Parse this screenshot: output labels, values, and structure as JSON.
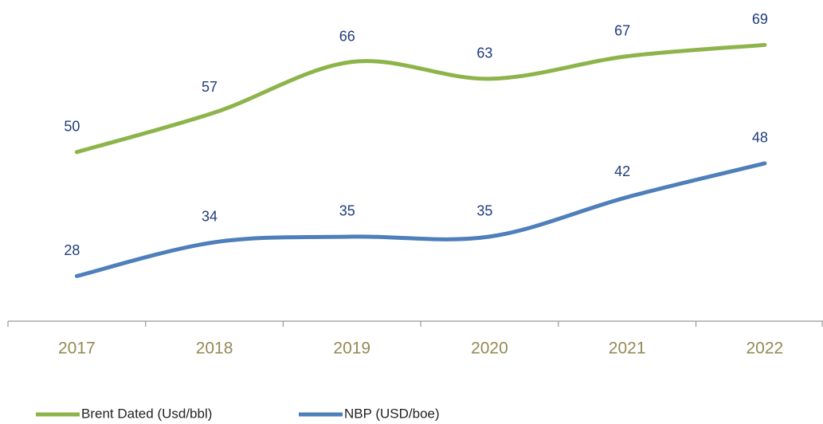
{
  "chart_data": {
    "type": "line",
    "categories": [
      "2017",
      "2018",
      "2019",
      "2020",
      "2021",
      "2022"
    ],
    "series": [
      {
        "name": "Brent Dated (Usd/bbl)",
        "color": "#8db44a",
        "values": [
          50,
          57,
          66,
          63,
          67,
          69
        ]
      },
      {
        "name": "NBP (USD/boe)",
        "color": "#4e7fba",
        "values": [
          28,
          34,
          35,
          35,
          42,
          48
        ]
      }
    ],
    "ylim": [
      20,
      75
    ],
    "legend": "bottom-left"
  }
}
